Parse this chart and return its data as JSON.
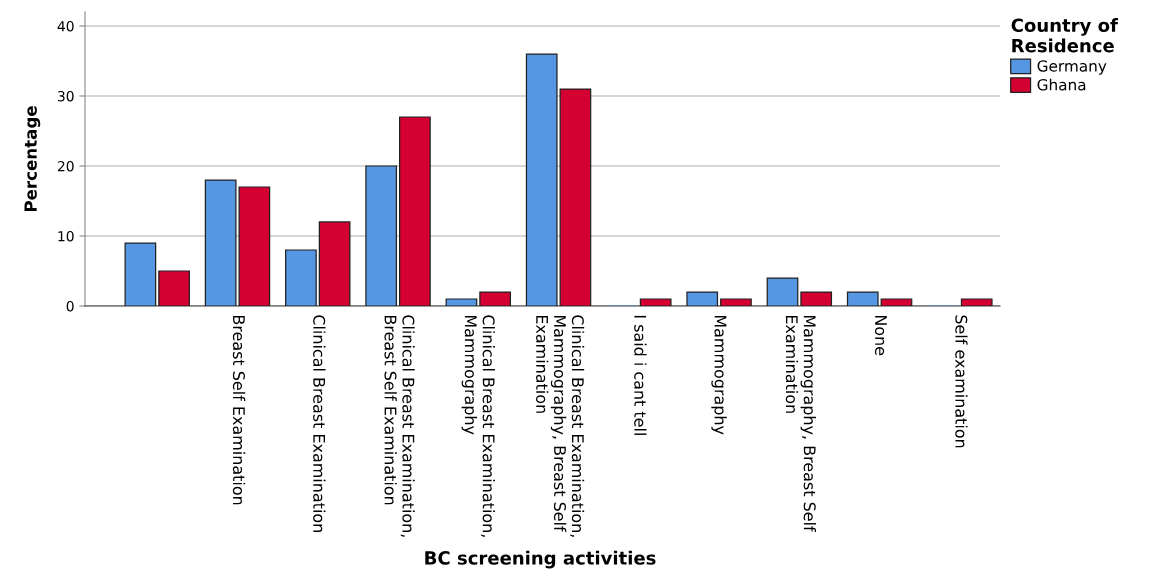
{
  "chart_data": {
    "type": "bar",
    "xlabel": "BC screening activities",
    "ylabel": "Percentage",
    "legend_title": "Country of Residence",
    "categories": [
      null,
      "Breast Self Examination",
      "Clinical Breast Examination",
      "Clinical Breast Examination, Breast Self Examination",
      "Clinical Breast Examination, Mammography",
      "Clinical Breast Examination, Mammography, Breast Self Examination",
      "I said i cant tell",
      "Mammography",
      "Mammography, Breast Self Examination",
      "None",
      "Self examination"
    ],
    "series": [
      {
        "name": "Germany",
        "color": "#5597e3",
        "values": [
          9,
          18,
          8,
          20,
          1,
          36,
          0,
          2,
          4,
          2,
          0
        ]
      },
      {
        "name": "Ghana",
        "color": "#d40032",
        "values": [
          5,
          17,
          12,
          27,
          2,
          31,
          1,
          1,
          2,
          1,
          1
        ]
      }
    ],
    "ylim": [
      0,
      42
    ],
    "yticks": [
      0,
      10,
      20,
      30,
      40
    ],
    "grid": "y",
    "legend": "top right"
  }
}
